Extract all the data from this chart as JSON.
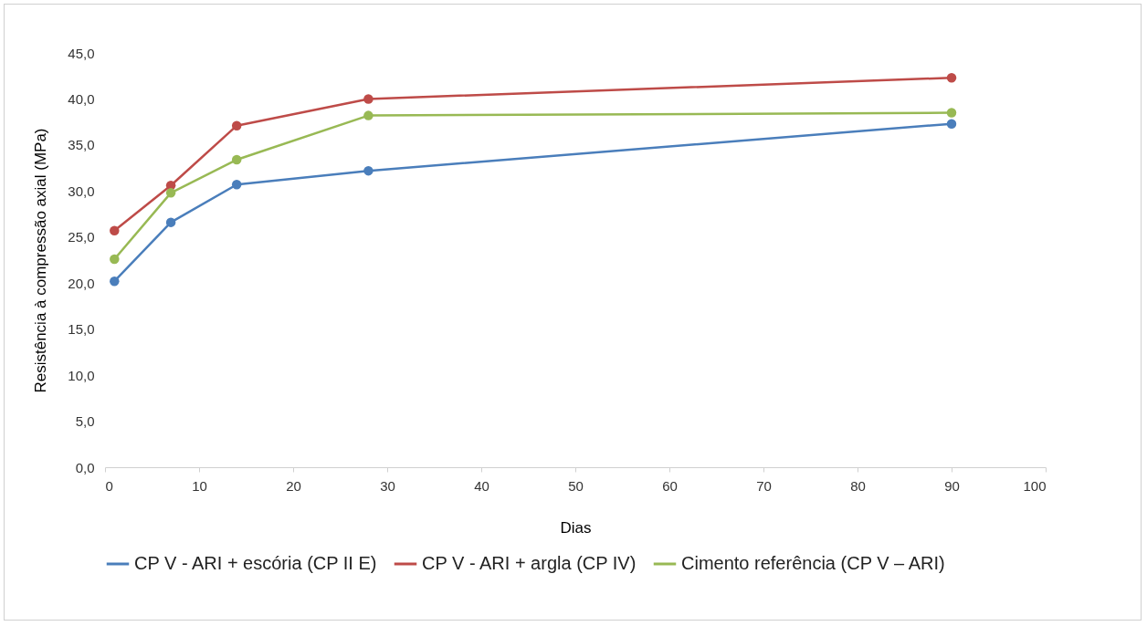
{
  "chart_data": {
    "type": "line",
    "xlabel": "Dias",
    "ylabel": "Resistência à compressão axial (MPa)",
    "x": [
      1,
      7,
      14,
      28,
      90
    ],
    "series": [
      {
        "name": "CP V - ARI + escória (CP II E)",
        "color": "#4a7ebb",
        "values": [
          20.2,
          26.6,
          30.7,
          32.2,
          37.3
        ]
      },
      {
        "name": "CP V - ARI + argla (CP IV)",
        "color": "#be4b48",
        "values": [
          25.7,
          30.6,
          37.1,
          40.0,
          42.3
        ]
      },
      {
        "name": "Cimento referência (CP V – ARI)",
        "color": "#98b954",
        "values": [
          22.6,
          29.8,
          33.4,
          38.2,
          38.5
        ]
      }
    ],
    "xlim": [
      0,
      100
    ],
    "xticks": [
      0,
      10,
      20,
      30,
      40,
      50,
      60,
      70,
      80,
      90,
      100
    ],
    "ylim": [
      0,
      45
    ],
    "yticks": [
      {
        "value": 0,
        "label": "0,0"
      },
      {
        "value": 5,
        "label": "5,0"
      },
      {
        "value": 10,
        "label": "10,0"
      },
      {
        "value": 15,
        "label": "15,0"
      },
      {
        "value": 20,
        "label": "20,0"
      },
      {
        "value": 25,
        "label": "25,0"
      },
      {
        "value": 30,
        "label": "30,0"
      },
      {
        "value": 35,
        "label": "35,0"
      },
      {
        "value": 40,
        "label": "40,0"
      },
      {
        "value": 45,
        "label": "45,0"
      }
    ],
    "grid": false,
    "legend": "bottom",
    "marker": "circle",
    "line_style": "solid"
  }
}
